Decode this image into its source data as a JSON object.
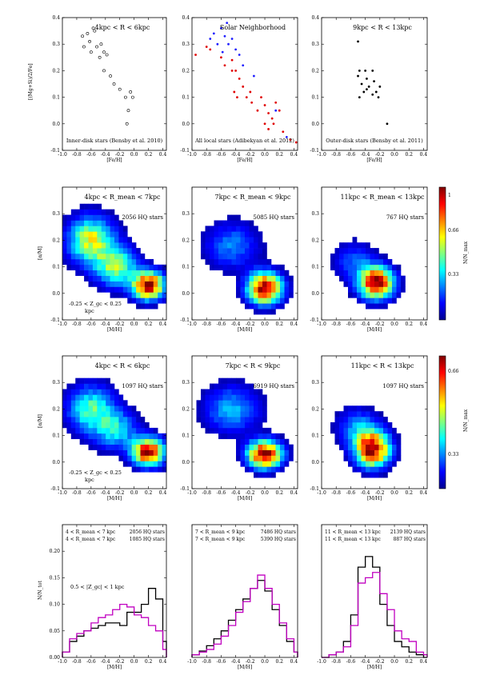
{
  "figure": {
    "row1_xlabel": "[Fe/H]",
    "row1_ylabel": "[(Mg+Si)/2/Fe]",
    "row2_ylabel": "[α/M]",
    "row3_ylabel": "[α/M]",
    "row4_ylabel": "N/N_tot",
    "mh_xlabel": "[M/H]",
    "colorbar_label": "N/N_max"
  },
  "chart_data": [
    {
      "id": "p11",
      "type": "scatter",
      "title": "4kpc < R < 6kpc",
      "note": "Inner-disk stars (Bensby et al. 2010)",
      "xlabel": "[Fe/H]",
      "xlim": [
        -1.0,
        0.45
      ],
      "ylim": [
        -0.1,
        0.4
      ],
      "xticks": [
        "-1.0",
        "-0.8",
        "-0.6",
        "-0.4",
        "-0.2",
        "0.0",
        "0.2",
        "0.4"
      ],
      "yticks": [
        "-0.1",
        "0.0",
        "0.1",
        "0.2",
        "0.3",
        "0.4"
      ],
      "series": [
        {
          "name": "inner-disk",
          "color": "#000000",
          "marker": "open-circle",
          "points": [
            [
              -0.72,
              0.33
            ],
            [
              -0.65,
              0.34
            ],
            [
              -0.62,
              0.31
            ],
            [
              -0.55,
              0.35
            ],
            [
              -0.7,
              0.29
            ],
            [
              -0.6,
              0.27
            ],
            [
              -0.52,
              0.29
            ],
            [
              -0.46,
              0.3
            ],
            [
              -0.42,
              0.27
            ],
            [
              -0.38,
              0.26
            ],
            [
              -0.48,
              0.25
            ],
            [
              -0.57,
              0.36
            ],
            [
              -0.42,
              0.2
            ],
            [
              -0.33,
              0.18
            ],
            [
              -0.28,
              0.15
            ],
            [
              -0.2,
              0.13
            ],
            [
              -0.12,
              0.1
            ],
            [
              -0.05,
              0.12
            ],
            [
              -0.08,
              0.05
            ],
            [
              -0.02,
              0.1
            ],
            [
              -0.1,
              0.0
            ]
          ]
        }
      ]
    },
    {
      "id": "p12",
      "type": "scatter",
      "title": "Solar Neighborhood",
      "note": "All local stars (Adibekyan et al. 2012)",
      "xlabel": "[Fe/H]",
      "xlim": [
        -1.0,
        0.45
      ],
      "ylim": [
        -0.1,
        0.4
      ],
      "xticks": [
        "-1.0",
        "-0.8",
        "-0.6",
        "-0.4",
        "-0.2",
        "0.0",
        "0.2",
        "0.4"
      ],
      "yticks": [
        "-0.1",
        "0.0",
        "0.1",
        "0.2",
        "0.3",
        "0.4"
      ],
      "series": [
        {
          "name": "thick-disk",
          "color": "#2020ff",
          "marker": "dot",
          "points": [
            [
              -0.75,
              0.32
            ],
            [
              -0.7,
              0.34
            ],
            [
              -0.65,
              0.3
            ],
            [
              -0.6,
              0.36
            ],
            [
              -0.55,
              0.33
            ],
            [
              -0.52,
              0.38
            ],
            [
              -0.5,
              0.3
            ],
            [
              -0.45,
              0.32
            ],
            [
              -0.58,
              0.27
            ],
            [
              -0.4,
              0.28
            ],
            [
              -0.35,
              0.26
            ],
            [
              -0.3,
              0.22
            ],
            [
              -0.15,
              0.18
            ],
            [
              0.15,
              0.05
            ],
            [
              0.3,
              -0.05
            ]
          ]
        },
        {
          "name": "thin-disk",
          "color": "#e00000",
          "marker": "dot",
          "points": [
            [
              -0.95,
              0.26
            ],
            [
              -0.8,
              0.29
            ],
            [
              -0.75,
              0.28
            ],
            [
              -0.6,
              0.25
            ],
            [
              -0.55,
              0.22
            ],
            [
              -0.45,
              0.24
            ],
            [
              -0.45,
              0.2
            ],
            [
              -0.4,
              0.2
            ],
            [
              -0.35,
              0.17
            ],
            [
              -0.3,
              0.14
            ],
            [
              -0.42,
              0.12
            ],
            [
              -0.38,
              0.1
            ],
            [
              -0.25,
              0.1
            ],
            [
              -0.2,
              0.12
            ],
            [
              -0.18,
              0.08
            ],
            [
              -0.1,
              0.05
            ],
            [
              -0.05,
              0.1
            ],
            [
              0.0,
              0.07
            ],
            [
              0.05,
              0.04
            ],
            [
              0.1,
              0.02
            ],
            [
              0.15,
              0.08
            ],
            [
              0.12,
              0.0
            ],
            [
              0.2,
              0.05
            ],
            [
              0.0,
              0.0
            ],
            [
              0.05,
              -0.02
            ],
            [
              0.25,
              -0.03
            ],
            [
              0.35,
              -0.06
            ],
            [
              0.43,
              -0.07
            ]
          ]
        }
      ]
    },
    {
      "id": "p13",
      "type": "scatter",
      "title": "9kpc < R < 13kpc",
      "note": "Outer-disk stars (Bensby et al. 2011)",
      "xlabel": "[Fe/H]",
      "xlim": [
        -1.0,
        0.45
      ],
      "ylim": [
        -0.1,
        0.4
      ],
      "xticks": [
        "-1.0",
        "-0.8",
        "-0.6",
        "-0.4",
        "-0.2",
        "0.0",
        "0.2",
        "0.4"
      ],
      "yticks": [
        "-0.1",
        "0.0",
        "0.1",
        "0.2",
        "0.3",
        "0.4"
      ],
      "series": [
        {
          "name": "outer-disk",
          "color": "#000000",
          "marker": "dot",
          "points": [
            [
              -0.5,
              0.31
            ],
            [
              -0.48,
              0.2
            ],
            [
              -0.5,
              0.18
            ],
            [
              -0.45,
              0.15
            ],
            [
              -0.4,
              0.2
            ],
            [
              -0.38,
              0.17
            ],
            [
              -0.42,
              0.12
            ],
            [
              -0.35,
              0.14
            ],
            [
              -0.3,
              0.2
            ],
            [
              -0.28,
              0.16
            ],
            [
              -0.25,
              0.12
            ],
            [
              -0.22,
              0.1
            ],
            [
              -0.2,
              0.14
            ],
            [
              -0.1,
              0.0
            ],
            [
              -0.48,
              0.1
            ],
            [
              -0.3,
              0.11
            ],
            [
              -0.38,
              0.13
            ]
          ]
        }
      ]
    },
    {
      "id": "p21",
      "type": "heatmap",
      "title": "4kpc < R_mean < 7kpc",
      "count_label": "2056 HQ stars",
      "note1": "-0.25 < Z_gc < 0.25",
      "note2": "kpc",
      "xlabel": "[M/H]",
      "xlim": [
        -1.0,
        0.45
      ],
      "ylim": [
        -0.1,
        0.4
      ],
      "xticks": [
        "-1.0",
        "-0.8",
        "-0.6",
        "-0.4",
        "-0.2",
        "0.0",
        "0.2",
        "0.4"
      ],
      "yticks": [
        "-0.1",
        "0.0",
        "0.1",
        "0.2",
        "0.3"
      ],
      "cmap_ticks": [
        "0.33",
        "0.66",
        "1"
      ],
      "blobs": [
        {
          "x": 0.2,
          "y": 0.03,
          "sx": 0.15,
          "sy": 0.035,
          "a": 1.0
        },
        {
          "x": -0.6,
          "y": 0.2,
          "sx": 0.22,
          "sy": 0.06,
          "a": 0.6
        },
        {
          "x": -0.25,
          "y": 0.1,
          "sx": 0.2,
          "sy": 0.05,
          "a": 0.5
        }
      ]
    },
    {
      "id": "p22",
      "type": "heatmap",
      "title": "7kpc < R_mean < 9kpc",
      "count_label": "5085 HQ stars",
      "xlabel": "[M/H]",
      "xlim": [
        -1.0,
        0.45
      ],
      "ylim": [
        -0.1,
        0.4
      ],
      "xticks": [
        "-1.0",
        "-0.8",
        "-0.6",
        "-0.4",
        "-0.2",
        "0.0",
        "0.2",
        "0.4"
      ],
      "yticks": [
        "-0.1",
        "0.0",
        "0.1",
        "0.2",
        "0.3"
      ],
      "blobs": [
        {
          "x": 0.0,
          "y": 0.02,
          "sx": 0.16,
          "sy": 0.04,
          "a": 1.0
        },
        {
          "x": -0.45,
          "y": 0.18,
          "sx": 0.25,
          "sy": 0.06,
          "a": 0.25
        }
      ]
    },
    {
      "id": "p23",
      "type": "heatmap",
      "title": "11kpc < R_mean < 13kpc",
      "count_label": "767 HQ stars",
      "xlabel": "[M/H]",
      "xlim": [
        -1.0,
        0.45
      ],
      "ylim": [
        -0.1,
        0.4
      ],
      "xticks": [
        "-1.0",
        "-0.8",
        "-0.6",
        "-0.4",
        "-0.2",
        "0.0",
        "0.2",
        "0.4"
      ],
      "yticks": [
        "-0.1",
        "0.0",
        "0.1",
        "0.2",
        "0.3"
      ],
      "blobs": [
        {
          "x": -0.25,
          "y": 0.04,
          "sx": 0.16,
          "sy": 0.04,
          "a": 1.0
        },
        {
          "x": -0.55,
          "y": 0.12,
          "sx": 0.2,
          "sy": 0.05,
          "a": 0.2
        }
      ]
    },
    {
      "id": "p31",
      "type": "heatmap",
      "title": "4kpc < R < 6kpc",
      "count_label": "1097 HQ stars",
      "note1": "-0.25 < Z_gc < 0.25",
      "note2": "kpc",
      "xlabel": "[M/H]",
      "xlim": [
        -1.0,
        0.45
      ],
      "ylim": [
        -0.1,
        0.4
      ],
      "xticks": [
        "-1.0",
        "-0.8",
        "-0.6",
        "-0.4",
        "-0.2",
        "0.0",
        "0.2",
        "0.4"
      ],
      "yticks": [
        "-0.1",
        "0.0",
        "0.1",
        "0.2",
        "0.3"
      ],
      "cmap_ticks": [
        "0.33",
        "0.66"
      ],
      "blobs": [
        {
          "x": 0.2,
          "y": 0.04,
          "sx": 0.15,
          "sy": 0.035,
          "a": 1.0
        },
        {
          "x": -0.6,
          "y": 0.2,
          "sx": 0.22,
          "sy": 0.06,
          "a": 0.45
        },
        {
          "x": -0.25,
          "y": 0.12,
          "sx": 0.2,
          "sy": 0.05,
          "a": 0.35
        }
      ]
    },
    {
      "id": "p32",
      "type": "heatmap",
      "title": "7kpc < R < 9kpc",
      "count_label": "6919 HQ stars",
      "xlabel": "[M/H]",
      "xlim": [
        -1.0,
        0.45
      ],
      "ylim": [
        -0.1,
        0.4
      ],
      "xticks": [
        "-1.0",
        "-0.8",
        "-0.6",
        "-0.4",
        "-0.2",
        "0.0",
        "0.2",
        "0.4"
      ],
      "yticks": [
        "-0.1",
        "0.0",
        "0.1",
        "0.2",
        "0.3"
      ],
      "blobs": [
        {
          "x": 0.0,
          "y": 0.03,
          "sx": 0.16,
          "sy": 0.035,
          "a": 1.0
        },
        {
          "x": -0.45,
          "y": 0.2,
          "sx": 0.26,
          "sy": 0.06,
          "a": 0.3
        }
      ]
    },
    {
      "id": "p33",
      "type": "heatmap",
      "title": "11kpc < R < 13kpc",
      "count_label": "1097 HQ stars",
      "xlabel": "[M/H]",
      "xlim": [
        -1.0,
        0.45
      ],
      "ylim": [
        -0.1,
        0.4
      ],
      "xticks": [
        "-1.0",
        "-0.8",
        "-0.6",
        "-0.4",
        "-0.2",
        "0.0",
        "0.2",
        "0.4"
      ],
      "yticks": [
        "-0.1",
        "0.0",
        "0.1",
        "0.2",
        "0.3"
      ],
      "blobs": [
        {
          "x": -0.3,
          "y": 0.05,
          "sx": 0.16,
          "sy": 0.045,
          "a": 1.0
        },
        {
          "x": -0.5,
          "y": 0.13,
          "sx": 0.2,
          "sy": 0.05,
          "a": 0.25
        }
      ]
    },
    {
      "id": "p41",
      "type": "histogram",
      "xlabel": "[M/H]",
      "ylabel": "N/N_tot",
      "xlim": [
        -1.0,
        0.45
      ],
      "ylim": [
        0.0,
        0.25
      ],
      "xticks": [
        "-1.0",
        "-0.8",
        "-0.6",
        "-0.4",
        "-0.2",
        "0.0",
        "0.2",
        "0.4"
      ],
      "yticks": [
        "0.00",
        "0.05",
        "0.10",
        "0.15",
        "0.20"
      ],
      "note": "0.5 < |Z_gc| < 1 kpc",
      "bin_edges": [
        -1.0,
        -0.9,
        -0.8,
        -0.7,
        -0.6,
        -0.5,
        -0.4,
        -0.3,
        -0.2,
        -0.1,
        0.0,
        0.1,
        0.2,
        0.3,
        0.4,
        0.45
      ],
      "series": [
        {
          "name": "4 < R_mean < 7 kpc",
          "count": "2056 HQ stars",
          "color": "#000000",
          "values": [
            0.01,
            0.03,
            0.04,
            0.05,
            0.055,
            0.06,
            0.065,
            0.065,
            0.06,
            0.085,
            0.085,
            0.1,
            0.13,
            0.11,
            0.03
          ]
        },
        {
          "name": "4 < R_mean < 7 kpc",
          "count": "1085 HQ stars",
          "color": "#c000c0",
          "values": [
            0.01,
            0.035,
            0.045,
            0.05,
            0.065,
            0.075,
            0.08,
            0.09,
            0.1,
            0.095,
            0.08,
            0.075,
            0.06,
            0.05,
            0.015
          ]
        }
      ]
    },
    {
      "id": "p42",
      "type": "histogram",
      "xlabel": "[M/H]",
      "xlim": [
        -1.0,
        0.45
      ],
      "ylim": [
        0.0,
        0.25
      ],
      "xticks": [
        "-1.0",
        "-0.8",
        "-0.6",
        "-0.4",
        "-0.2",
        "0.0",
        "0.2",
        "0.4"
      ],
      "bin_edges": [
        -1.0,
        -0.9,
        -0.8,
        -0.7,
        -0.6,
        -0.5,
        -0.4,
        -0.3,
        -0.2,
        -0.1,
        0.0,
        0.1,
        0.2,
        0.3,
        0.4,
        0.45
      ],
      "series": [
        {
          "name": "7 < R_mean < 9 kpc",
          "count": "7486 HQ stars",
          "color": "#000000",
          "values": [
            0.005,
            0.012,
            0.022,
            0.035,
            0.05,
            0.07,
            0.09,
            0.11,
            0.13,
            0.145,
            0.125,
            0.09,
            0.06,
            0.03,
            0.01
          ]
        },
        {
          "name": "7 < R_mean < 9 kpc",
          "count": "5390 HQ stars",
          "color": "#c000c0",
          "values": [
            0.005,
            0.01,
            0.015,
            0.025,
            0.04,
            0.06,
            0.085,
            0.105,
            0.13,
            0.155,
            0.13,
            0.1,
            0.065,
            0.035,
            0.01
          ]
        }
      ]
    },
    {
      "id": "p43",
      "type": "histogram",
      "xlabel": "[M/H]",
      "xlim": [
        -1.0,
        0.45
      ],
      "ylim": [
        0.0,
        0.25
      ],
      "xticks": [
        "-1.0",
        "-0.8",
        "-0.6",
        "-0.4",
        "-0.2",
        "0.0",
        "0.2",
        "0.4"
      ],
      "bin_edges": [
        -1.0,
        -0.9,
        -0.8,
        -0.7,
        -0.6,
        -0.5,
        -0.4,
        -0.3,
        -0.2,
        -0.1,
        0.0,
        0.1,
        0.2,
        0.3,
        0.4,
        0.45
      ],
      "series": [
        {
          "name": "11 < R_mean < 13 kpc",
          "count": "2139 HQ stars",
          "color": "#000000",
          "values": [
            0.0,
            0.005,
            0.01,
            0.03,
            0.08,
            0.17,
            0.19,
            0.17,
            0.1,
            0.06,
            0.03,
            0.02,
            0.01,
            0.005,
            0.0
          ]
        },
        {
          "name": "11 < R_mean < 13 kpc",
          "count": "887 HQ stars",
          "color": "#c000c0",
          "values": [
            0.0,
            0.005,
            0.01,
            0.02,
            0.06,
            0.14,
            0.15,
            0.16,
            0.12,
            0.09,
            0.05,
            0.035,
            0.03,
            0.01,
            0.005
          ]
        }
      ]
    }
  ]
}
